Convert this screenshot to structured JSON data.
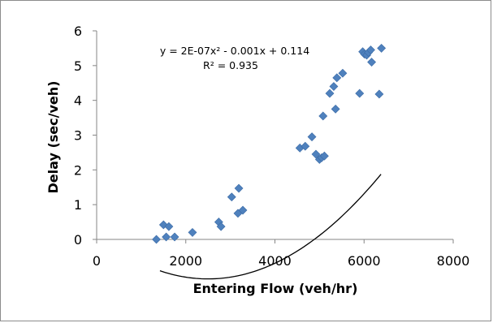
{
  "chart_data": {
    "type": "scatter",
    "title": "",
    "xlabel": "Entering Flow (veh/hr)",
    "ylabel": "Delay  (sec/veh)",
    "xlim": [
      0,
      8000
    ],
    "ylim": [
      0,
      6
    ],
    "x_ticks": [
      "0",
      "2000",
      "4000",
      "6000",
      "8000"
    ],
    "y_ticks": [
      "0",
      "1",
      "2",
      "3",
      "4",
      "5",
      "6"
    ],
    "grid": false,
    "legend": "none",
    "marker": "diamond",
    "marker_color": "#4f81bd",
    "trendline": {
      "type": "polynomial",
      "coefficients": [
        2e-07,
        -0.001,
        0.114
      ],
      "color": "#000000",
      "equation": "y = 2E-07x² - 0.001x + 0.114",
      "r_squared": "R² = 0.935",
      "x_range": [
        1420,
        6380
      ]
    },
    "points": [
      {
        "x": 1340,
        "y": 0.0
      },
      {
        "x": 1500,
        "y": 0.42
      },
      {
        "x": 1560,
        "y": 0.07
      },
      {
        "x": 1620,
        "y": 0.37
      },
      {
        "x": 1750,
        "y": 0.07
      },
      {
        "x": 2150,
        "y": 0.2
      },
      {
        "x": 2740,
        "y": 0.5
      },
      {
        "x": 2790,
        "y": 0.37
      },
      {
        "x": 3030,
        "y": 1.22
      },
      {
        "x": 3170,
        "y": 0.75
      },
      {
        "x": 3190,
        "y": 1.47
      },
      {
        "x": 3280,
        "y": 0.84
      },
      {
        "x": 4560,
        "y": 2.63
      },
      {
        "x": 4680,
        "y": 2.68
      },
      {
        "x": 4830,
        "y": 2.95
      },
      {
        "x": 4920,
        "y": 2.45
      },
      {
        "x": 5000,
        "y": 2.3
      },
      {
        "x": 5050,
        "y": 2.35
      },
      {
        "x": 5080,
        "y": 3.55
      },
      {
        "x": 5110,
        "y": 2.4
      },
      {
        "x": 5230,
        "y": 4.2
      },
      {
        "x": 5320,
        "y": 4.4
      },
      {
        "x": 5360,
        "y": 3.75
      },
      {
        "x": 5390,
        "y": 4.65
      },
      {
        "x": 5520,
        "y": 4.78
      },
      {
        "x": 5900,
        "y": 4.2
      },
      {
        "x": 5970,
        "y": 5.4
      },
      {
        "x": 6010,
        "y": 5.33
      },
      {
        "x": 6060,
        "y": 5.3
      },
      {
        "x": 6100,
        "y": 5.38
      },
      {
        "x": 6150,
        "y": 5.45
      },
      {
        "x": 6170,
        "y": 5.1
      },
      {
        "x": 6340,
        "y": 4.18
      },
      {
        "x": 6390,
        "y": 5.5
      }
    ]
  }
}
